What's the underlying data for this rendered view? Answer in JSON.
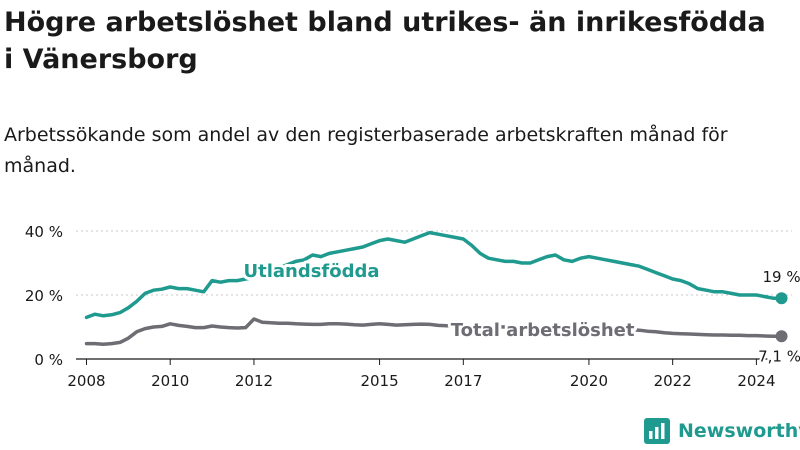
{
  "title": "Högre arbetslöshet bland utrikes- än inrikesfödda i Vänersborg",
  "subtitle": "Arbetssökande som andel av den registerbaserade arbetskraften månad för månad.",
  "brand": "Newsworthy",
  "colors": {
    "foreign": "#1f9a8f",
    "total": "#6e6d73",
    "grid": "#c8c8c8",
    "axis": "#1a1a1a"
  },
  "chart_data": {
    "type": "line",
    "title": "Högre arbetslöshet bland utrikes- än inrikesfödda i Vänersborg",
    "xlabel": "",
    "ylabel": "",
    "xlim": [
      2007.75,
      2024.85
    ],
    "ylim": [
      0,
      40
    ],
    "yticks": [
      0,
      20,
      40
    ],
    "ytick_labels": [
      "0 %",
      "20 %",
      "40 %"
    ],
    "xticks": [
      2008,
      2010,
      2012,
      2015,
      2017,
      2020,
      2022,
      2024
    ],
    "xtick_labels": [
      "2008",
      "2010",
      "2012",
      "2015",
      "2017",
      "2020",
      "2022",
      "2024"
    ],
    "grid": true,
    "series": [
      {
        "name": "Utlandsfödda",
        "end_label": "19 %",
        "x": [
          2008.0,
          2008.2,
          2008.4,
          2008.6,
          2008.8,
          2009.0,
          2009.2,
          2009.4,
          2009.6,
          2009.8,
          2010.0,
          2010.2,
          2010.4,
          2010.6,
          2010.8,
          2011.0,
          2011.2,
          2011.4,
          2011.6,
          2011.8,
          2012.0,
          2012.2,
          2012.4,
          2012.6,
          2012.8,
          2013.0,
          2013.2,
          2013.4,
          2013.6,
          2013.8,
          2014.0,
          2014.2,
          2014.4,
          2014.6,
          2014.8,
          2015.0,
          2015.2,
          2015.4,
          2015.6,
          2015.8,
          2016.0,
          2016.2,
          2016.4,
          2016.6,
          2016.8,
          2017.0,
          2017.2,
          2017.4,
          2017.6,
          2017.8,
          2018.0,
          2018.2,
          2018.4,
          2018.6,
          2018.8,
          2019.0,
          2019.2,
          2019.4,
          2019.6,
          2019.8,
          2020.0,
          2020.2,
          2020.4,
          2020.6,
          2020.8,
          2021.0,
          2021.2,
          2021.4,
          2021.6,
          2021.8,
          2022.0,
          2022.2,
          2022.4,
          2022.6,
          2022.8,
          2023.0,
          2023.2,
          2023.4,
          2023.6,
          2023.8,
          2024.0,
          2024.2,
          2024.4,
          2024.6
        ],
        "values": [
          13,
          14,
          13.5,
          13.8,
          14.5,
          16,
          18,
          20.5,
          21.5,
          21.8,
          22.5,
          22,
          22,
          21.5,
          21,
          24.5,
          24,
          24.5,
          24.5,
          25,
          25.5,
          26.5,
          27.5,
          28.5,
          29.5,
          30.5,
          31,
          32.5,
          32,
          33,
          33.5,
          34,
          34.5,
          35,
          36,
          37,
          37.5,
          37,
          36.5,
          37.5,
          38.5,
          39.5,
          39,
          38.5,
          38,
          37.5,
          35.5,
          33,
          31.5,
          31,
          30.5,
          30.5,
          30,
          30,
          31,
          32,
          32.5,
          31,
          30.5,
          31.5,
          32,
          31.5,
          31,
          30.5,
          30,
          29.5,
          29,
          28,
          27,
          26,
          25,
          24.5,
          23.5,
          22,
          21.5,
          21,
          21,
          20.5,
          20,
          20,
          20,
          19.5,
          19,
          19
        ]
      },
      {
        "name": "Total arbetslöshet",
        "end_label": "7,1 %",
        "x": [
          2008.0,
          2008.2,
          2008.4,
          2008.6,
          2008.8,
          2009.0,
          2009.2,
          2009.4,
          2009.6,
          2009.8,
          2010.0,
          2010.2,
          2010.4,
          2010.6,
          2010.8,
          2011.0,
          2011.2,
          2011.4,
          2011.6,
          2011.8,
          2012.0,
          2012.2,
          2012.4,
          2012.6,
          2012.8,
          2013.0,
          2013.2,
          2013.4,
          2013.6,
          2013.8,
          2014.0,
          2014.2,
          2014.4,
          2014.6,
          2014.8,
          2015.0,
          2015.2,
          2015.4,
          2015.6,
          2015.8,
          2016.0,
          2016.2,
          2016.4,
          2016.6,
          2016.8,
          2017.0,
          2017.2,
          2017.4,
          2017.6,
          2017.8,
          2018.0,
          2018.2,
          2018.4,
          2018.6,
          2018.8,
          2019.0,
          2019.2,
          2019.4,
          2019.6,
          2019.8,
          2020.0,
          2020.2,
          2020.4,
          2020.6,
          2020.8,
          2021.0,
          2021.2,
          2021.4,
          2021.6,
          2021.8,
          2022.0,
          2022.2,
          2022.4,
          2022.6,
          2022.8,
          2023.0,
          2023.2,
          2023.4,
          2023.6,
          2023.8,
          2024.0,
          2024.2,
          2024.4,
          2024.6
        ],
        "values": [
          4.8,
          4.8,
          4.6,
          4.8,
          5.2,
          6.5,
          8.5,
          9.5,
          10,
          10.2,
          11,
          10.5,
          10.2,
          9.8,
          9.8,
          10.3,
          10,
          9.8,
          9.7,
          9.8,
          12.5,
          11.5,
          11.3,
          11.2,
          11.2,
          11,
          10.9,
          10.8,
          10.8,
          11,
          11,
          10.9,
          10.7,
          10.6,
          10.8,
          11,
          10.8,
          10.6,
          10.7,
          10.8,
          10.9,
          10.8,
          10.5,
          10.4,
          10.4,
          10.3,
          10.2,
          10.2,
          10.1,
          10.1,
          10,
          10,
          9.9,
          9.9,
          9.8,
          9.8,
          9.7,
          9.5,
          9.5,
          9.6,
          9.6,
          9.5,
          9.5,
          9.4,
          9.3,
          9.2,
          9,
          8.7,
          8.5,
          8.2,
          8,
          7.9,
          7.8,
          7.7,
          7.6,
          7.5,
          7.5,
          7.4,
          7.4,
          7.3,
          7.3,
          7.2,
          7.1,
          7.1
        ]
      }
    ],
    "annotations": [
      "Utlandsfödda",
      "Total arbetslöshet"
    ]
  }
}
